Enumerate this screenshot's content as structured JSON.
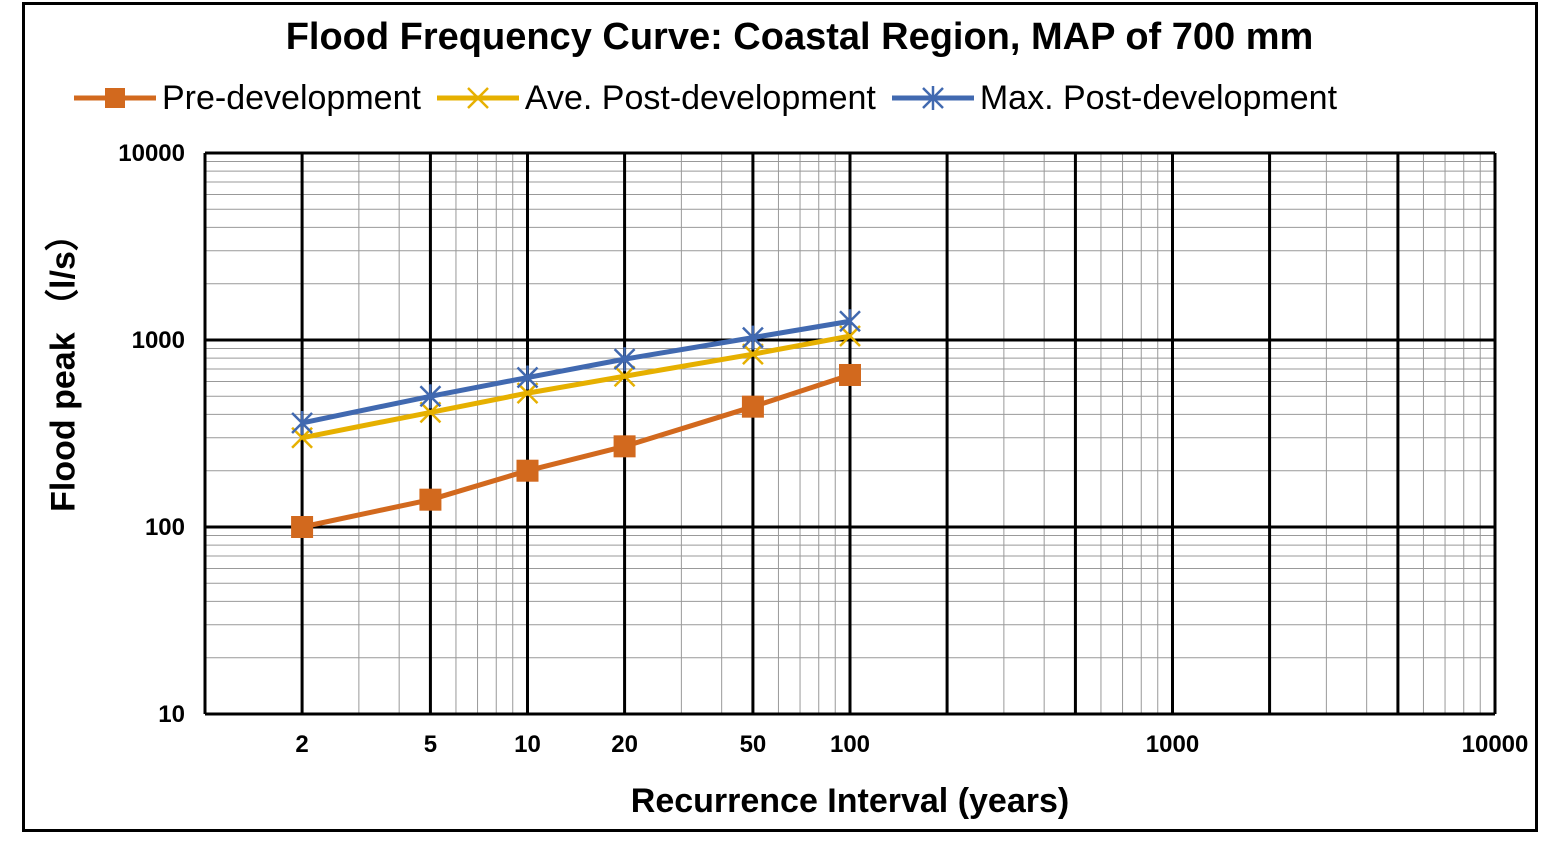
{
  "chart_data": {
    "type": "line",
    "title": "Flood Frequency Curve: Coastal Region, MAP of 700 mm",
    "xlabel": "Recurrence Interval (years)",
    "ylabel": "Flood peak （l/s）",
    "x_scale": "log",
    "y_scale": "log",
    "xlim": [
      1,
      10000
    ],
    "ylim": [
      10,
      10000
    ],
    "x_tick_labels": [
      "2",
      "5",
      "10",
      "20",
      "50",
      "100",
      "1000",
      "10000"
    ],
    "y_tick_labels": [
      "10",
      "100",
      "1000",
      "10000"
    ],
    "grid": true,
    "legend_position": "top",
    "x": [
      2,
      5,
      10,
      20,
      50,
      100
    ],
    "series": [
      {
        "name": "Pre-development",
        "color": "#D2691E",
        "marker": "square",
        "values": [
          100,
          140,
          200,
          270,
          440,
          650
        ]
      },
      {
        "name": "Ave. Post-development",
        "color": "#E6B000",
        "marker": "x",
        "values": [
          300,
          410,
          520,
          640,
          840,
          1050
        ]
      },
      {
        "name": "Max. Post-development",
        "color": "#4169B0",
        "marker": "asterisk",
        "values": [
          360,
          500,
          630,
          790,
          1030,
          1260
        ]
      }
    ]
  }
}
